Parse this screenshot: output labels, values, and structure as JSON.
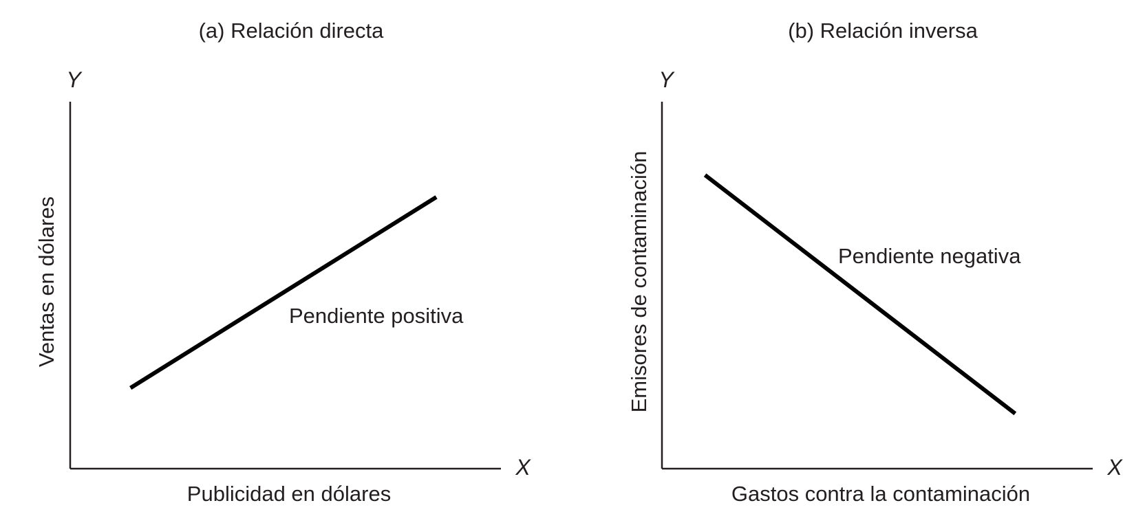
{
  "chart_data": [
    {
      "type": "line",
      "title": "(a) Relación directa",
      "xlabel": "Publicidad en dólares",
      "ylabel": "Ventas en dólares",
      "x_axis_symbol": "X",
      "y_axis_symbol": "Y",
      "annotation": "Pendiente positiva",
      "line_color": "#000000",
      "grid": false,
      "series": [
        {
          "x": [
            0.14,
            0.85
          ],
          "y": [
            0.22,
            0.74
          ]
        }
      ]
    },
    {
      "type": "line",
      "title": "(b) Relación inversa",
      "xlabel": "Gastos contra la contaminación",
      "ylabel": "Emisores de contaminación",
      "x_axis_symbol": "X",
      "y_axis_symbol": "Y",
      "annotation": "Pendiente negativa",
      "line_color": "#000000",
      "grid": false,
      "series": [
        {
          "x": [
            0.1,
            0.82
          ],
          "y": [
            0.8,
            0.15
          ]
        }
      ]
    }
  ]
}
